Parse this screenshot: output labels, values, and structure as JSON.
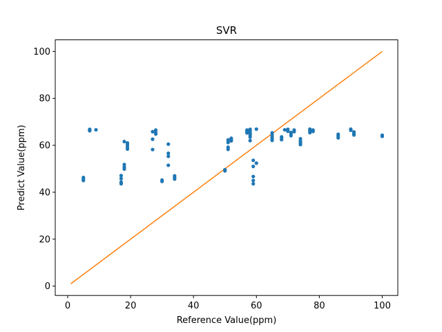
{
  "chart_data": {
    "type": "scatter",
    "title": "SVR",
    "xlabel": "Reference Value(ppm)",
    "ylabel": "Predict Value(ppm)",
    "xlim": [
      -3.95,
      104.95
    ],
    "ylim": [
      -4.0,
      104.95
    ],
    "xticks": [
      0,
      20,
      40,
      60,
      80,
      100
    ],
    "yticks": [
      0,
      20,
      40,
      60,
      80,
      100
    ],
    "grid": false,
    "colors": {
      "scatter": "#1f77b4",
      "line": "#ff7f0e"
    },
    "scatter_points": [
      [
        5,
        46.3
      ],
      [
        5,
        45.6
      ],
      [
        5,
        45.0
      ],
      [
        7,
        66.8
      ],
      [
        7,
        66.5
      ],
      [
        7,
        66.2
      ],
      [
        9,
        66.6
      ],
      [
        17,
        47.1
      ],
      [
        17,
        45.8
      ],
      [
        17,
        44.3
      ],
      [
        17,
        43.6
      ],
      [
        18,
        61.6
      ],
      [
        18,
        51.8
      ],
      [
        18,
        50.7
      ],
      [
        18,
        49.9
      ],
      [
        19,
        61.0
      ],
      [
        19,
        60.2
      ],
      [
        19,
        59.3
      ],
      [
        19,
        58.4
      ],
      [
        27,
        65.8
      ],
      [
        27,
        62.6
      ],
      [
        27,
        58.2
      ],
      [
        28,
        66.5
      ],
      [
        28,
        65.5
      ],
      [
        28,
        64.8
      ],
      [
        30,
        45.2
      ],
      [
        30,
        44.6
      ],
      [
        32,
        60.5
      ],
      [
        32,
        56.6
      ],
      [
        32,
        55.3
      ],
      [
        32,
        51.5
      ],
      [
        34,
        47.0
      ],
      [
        34,
        46.2
      ],
      [
        34,
        45.6
      ],
      [
        50,
        49.6
      ],
      [
        50,
        49.1
      ],
      [
        51,
        62.3
      ],
      [
        51,
        61.2
      ],
      [
        51,
        59.2
      ],
      [
        51,
        58.3
      ],
      [
        52,
        63.0
      ],
      [
        52,
        62.5
      ],
      [
        52,
        61.9
      ],
      [
        57,
        66.5
      ],
      [
        57,
        65.9
      ],
      [
        57,
        65.3
      ],
      [
        58,
        66.8
      ],
      [
        58,
        66.1
      ],
      [
        58,
        65.2
      ],
      [
        58,
        64.4
      ],
      [
        58,
        63.5
      ],
      [
        58,
        62.0
      ],
      [
        59,
        53.6
      ],
      [
        59,
        51.0
      ],
      [
        59,
        46.7
      ],
      [
        59,
        45.0
      ],
      [
        59,
        43.6
      ],
      [
        60,
        66.9
      ],
      [
        60,
        52.4
      ],
      [
        65,
        65.3
      ],
      [
        65,
        64.4
      ],
      [
        65,
        63.5
      ],
      [
        65,
        62.7
      ],
      [
        65,
        62.1
      ],
      [
        68,
        63.6
      ],
      [
        68,
        63.0
      ],
      [
        68,
        62.4
      ],
      [
        69,
        66.6
      ],
      [
        70,
        66.8
      ],
      [
        70,
        66.0
      ],
      [
        71,
        65.5
      ],
      [
        71,
        64.9
      ],
      [
        71,
        64.1
      ],
      [
        72,
        66.5
      ],
      [
        72,
        65.8
      ],
      [
        74,
        62.8
      ],
      [
        74,
        61.8
      ],
      [
        74,
        61.0
      ],
      [
        74,
        60.3
      ],
      [
        77,
        66.9
      ],
      [
        77,
        66.2
      ],
      [
        77,
        65.4
      ],
      [
        78,
        66.5
      ],
      [
        78,
        65.9
      ],
      [
        86,
        64.7
      ],
      [
        86,
        64.0
      ],
      [
        86,
        63.2
      ],
      [
        90,
        66.9
      ],
      [
        90,
        66.4
      ],
      [
        91,
        65.7
      ],
      [
        91,
        65.0
      ],
      [
        91,
        64.4
      ],
      [
        100,
        64.3
      ],
      [
        100,
        63.8
      ]
    ],
    "line": {
      "x": [
        1,
        100
      ],
      "y": [
        1,
        100
      ]
    }
  }
}
